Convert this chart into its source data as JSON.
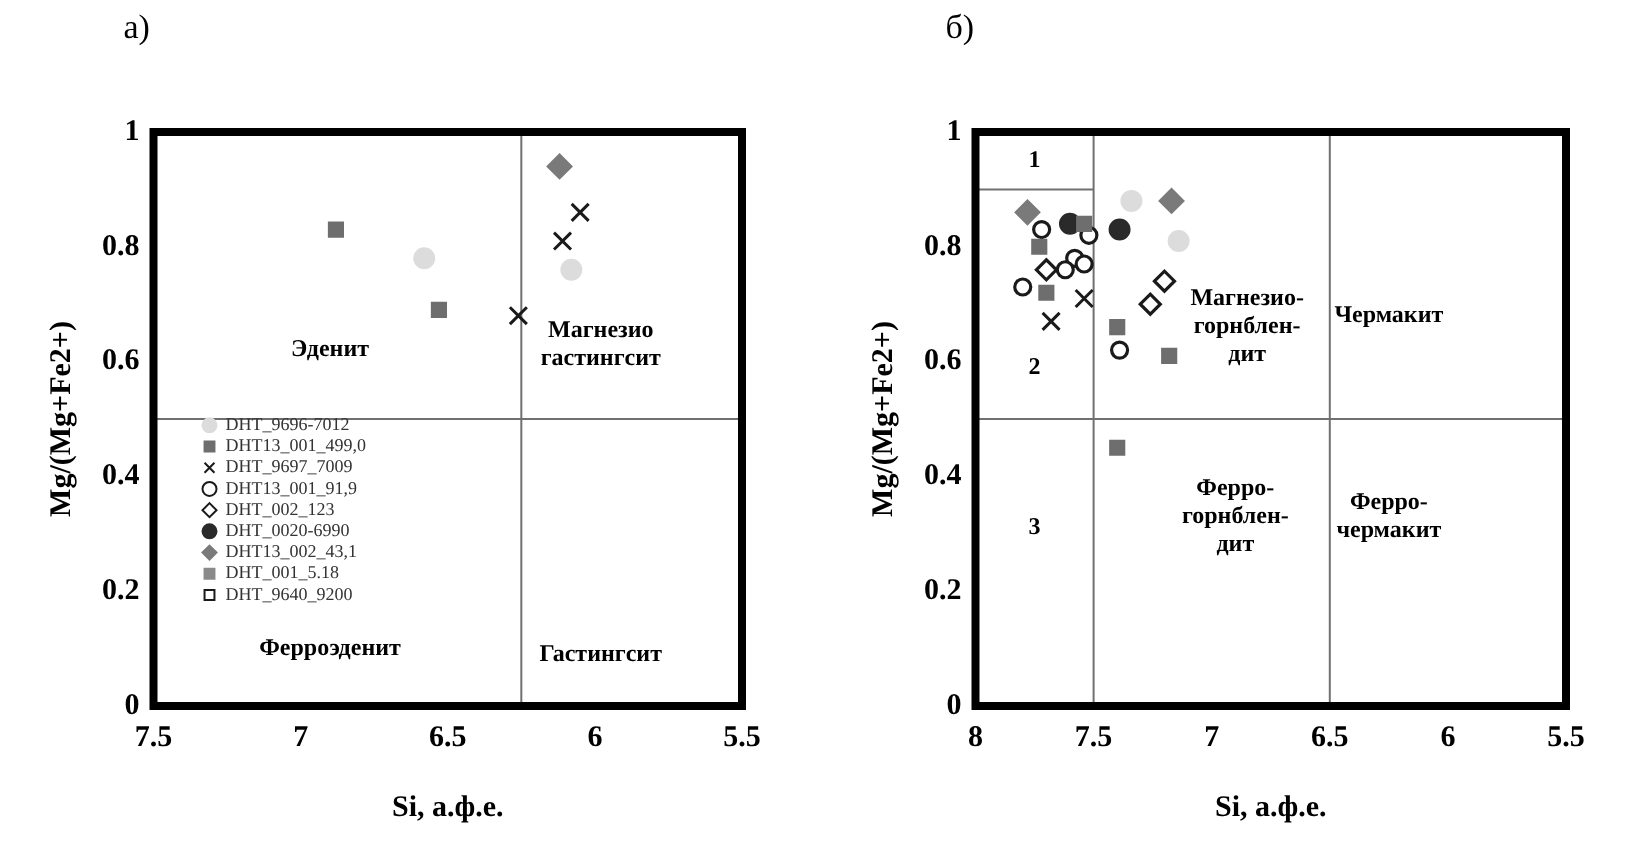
{
  "chart_data": [
    {
      "type": "scatter",
      "title": "а)",
      "xlabel": "Si, а.ф.е.",
      "ylabel": "Mg/(Mg+Fe2+)",
      "xlim": [
        7.5,
        5.5
      ],
      "xticks": [
        7.5,
        7,
        6.5,
        6,
        5.5
      ],
      "ylim": [
        0,
        1
      ],
      "yticks": [
        0,
        0.2,
        0.4,
        0.6,
        0.8,
        1
      ],
      "grid": false,
      "legend": "bottom left",
      "ref_lines": [
        {
          "axis": "x",
          "value": 6.25,
          "color": "#707070"
        },
        {
          "axis": "y",
          "value": 0.5,
          "color": "#707070"
        }
      ],
      "annotations": [
        "Эденит",
        "Магнезио\nгастингсит",
        "Ферроэденит",
        "Гастингсит"
      ],
      "series": [
        {
          "name": "DHT_9696-7012",
          "color": "#dcdcdc",
          "marker": "circle",
          "x": [
            6.58,
            6.08
          ],
          "values": [
            0.78,
            0.76
          ]
        },
        {
          "name": "DHT13_001_499,0",
          "color": "#6e6e6e",
          "marker": "square",
          "x": [
            6.88,
            6.53
          ],
          "values": [
            0.83,
            0.69
          ]
        },
        {
          "name": "DHT_9697_7009",
          "color": "#1a1a1a",
          "marker": "cross",
          "x": [
            6.26,
            6.11,
            6.05
          ],
          "values": [
            0.68,
            0.81,
            0.86
          ]
        },
        {
          "name": "DHT13_001_91,9",
          "color": "#1a1a1a",
          "marker": "circle-open"
        },
        {
          "name": "DHT_002_123",
          "color": "#1a1a1a",
          "marker": "diamond-open"
        },
        {
          "name": "DHT_0020-6990",
          "color": "#2a2a2a",
          "marker": "circle"
        },
        {
          "name": "DHT13_002_43,1",
          "color": "#7a7a7a",
          "marker": "diamond",
          "x": [
            6.12
          ],
          "values": [
            0.94
          ]
        },
        {
          "name": "DHT_001_5.18",
          "color": "#8a8a8a",
          "marker": "square"
        },
        {
          "name": "DHT_9640_9200",
          "color": "#1a1a1a",
          "marker": "square-open"
        }
      ]
    },
    {
      "type": "scatter",
      "title": "б)",
      "xlabel": "Si, а.ф.е.",
      "ylabel": "Mg/(Mg+Fe2+)",
      "xlim": [
        8,
        5.5
      ],
      "xticks": [
        8,
        7.5,
        7,
        6.5,
        6,
        5.5
      ],
      "ylim": [
        0,
        1
      ],
      "yticks": [
        0,
        0.2,
        0.4,
        0.6,
        0.8,
        1
      ],
      "grid": false,
      "ref_lines": [
        {
          "axis": "x",
          "value": 7.5,
          "color": "#707070"
        },
        {
          "axis": "x",
          "value": 6.5,
          "color": "#707070"
        },
        {
          "axis": "y",
          "value": 0.5,
          "color": "#707070"
        }
      ],
      "annotations": [
        "1",
        "2",
        "3",
        "Магнезио-\nгорнблен-\nдит",
        "Чермакит",
        "Ферро-\nгорнблен-\nдит",
        "Ферро-\nчермакит"
      ],
      "series": [
        {
          "type": "line",
          "color": "#707070",
          "marker": "none",
          "x": [
            8,
            7.5
          ],
          "values": [
            0.9,
            0.9
          ]
        },
        {
          "color": "#dcdcdc",
          "marker": "circle",
          "x": [
            7.34,
            7.14
          ],
          "values": [
            0.88,
            0.81
          ]
        },
        {
          "color": "#6e6e6e",
          "marker": "square",
          "x": [
            7.73,
            7.7,
            7.4,
            7.18,
            7.4,
            7.54
          ],
          "values": [
            0.8,
            0.72,
            0.66,
            0.61,
            0.45,
            0.84
          ]
        },
        {
          "color": "#1a1a1a",
          "marker": "cross",
          "x": [
            7.68,
            7.54
          ],
          "values": [
            0.67,
            0.71
          ]
        },
        {
          "color": "#1a1a1a",
          "marker": "circle-open",
          "x": [
            7.72,
            7.8,
            7.52,
            7.58,
            7.62,
            7.54,
            7.39
          ],
          "values": [
            0.83,
            0.73,
            0.82,
            0.78,
            0.76,
            0.77,
            0.62
          ]
        },
        {
          "color": "#1a1a1a",
          "marker": "diamond-open",
          "x": [
            7.7,
            7.26,
            7.2
          ],
          "values": [
            0.76,
            0.7,
            0.74
          ]
        },
        {
          "color": "#2a2a2a",
          "marker": "circle",
          "x": [
            7.6,
            7.39
          ],
          "values": [
            0.84,
            0.83
          ]
        },
        {
          "color": "#7a7a7a",
          "marker": "diamond",
          "x": [
            7.78,
            7.17
          ],
          "values": [
            0.86,
            0.88
          ]
        }
      ]
    }
  ]
}
